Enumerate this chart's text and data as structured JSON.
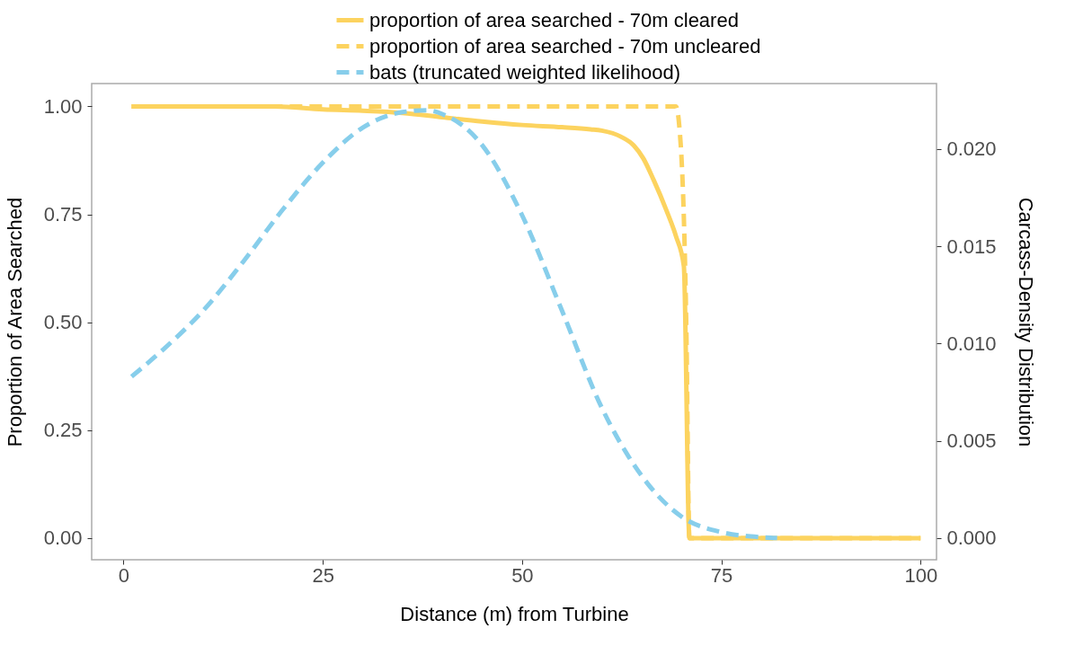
{
  "chart_data": {
    "type": "line",
    "xlabel": "Distance (m) from Turbine",
    "ylabel": "Proportion of Area Searched",
    "y2label": "Carcass-Density Distribution",
    "xlim": [
      -4,
      102
    ],
    "xticks": [
      0,
      25,
      50,
      75,
      100
    ],
    "ylim": [
      -0.05,
      1.053
    ],
    "yticks": [
      {
        "value": 0,
        "label": "0.00"
      },
      {
        "value": 0.25,
        "label": "0.25"
      },
      {
        "value": 0.5,
        "label": "0.50"
      },
      {
        "value": 0.75,
        "label": "0.75"
      },
      {
        "value": 1,
        "label": "1.00"
      }
    ],
    "y2lim": [
      -0.00112,
      0.02337
    ],
    "y2ticks": [
      {
        "value": 0,
        "label": "0.000"
      },
      {
        "value": 0.005,
        "label": "0.005"
      },
      {
        "value": 0.01,
        "label": "0.010"
      },
      {
        "value": 0.015,
        "label": "0.015"
      },
      {
        "value": 0.02,
        "label": "0.020"
      }
    ],
    "grid": false,
    "legend": "top",
    "series": [
      {
        "name": "proportion of area searched - 70m cleared",
        "color": "#fcd35f",
        "line_style": "solid",
        "x": [
          1,
          19,
          25,
          30,
          35,
          40,
          45,
          50,
          55,
          58.6,
          60,
          62.4,
          64,
          65.2,
          66.5,
          68.1,
          69.3,
          70.3,
          71,
          100
        ],
        "values": [
          1,
          1,
          0.993,
          0.99,
          0.985,
          0.975,
          0.965,
          0.957,
          0.952,
          0.947,
          0.944,
          0.93,
          0.91,
          0.88,
          0.83,
          0.76,
          0.7,
          0.63,
          0,
          0
        ]
      },
      {
        "name": "proportion of area searched - 70m uncleared",
        "color": "#fcd35f",
        "line_style": "dashed",
        "x": [
          1,
          69.3,
          69.7,
          70.6,
          71,
          100
        ],
        "values": [
          1,
          1,
          0.96,
          0.5,
          0,
          0
        ]
      },
      {
        "name": "bats (truncated weighted likelihood)",
        "color": "#87ceeb",
        "line_style": "dashed",
        "axis": "y2",
        "x": [
          1,
          5,
          10,
          15,
          20,
          25,
          30,
          35,
          38,
          40,
          45,
          50,
          55,
          60,
          65,
          70,
          75,
          80,
          82
        ],
        "values": [
          0.0083,
          0.0097,
          0.0117,
          0.0142,
          0.0169,
          0.0193,
          0.0211,
          0.0219,
          0.022,
          0.0218,
          0.0202,
          0.0166,
          0.0117,
          0.0067,
          0.0032,
          0.0011,
          0.0003,
          4e-05,
          0
        ]
      }
    ]
  }
}
